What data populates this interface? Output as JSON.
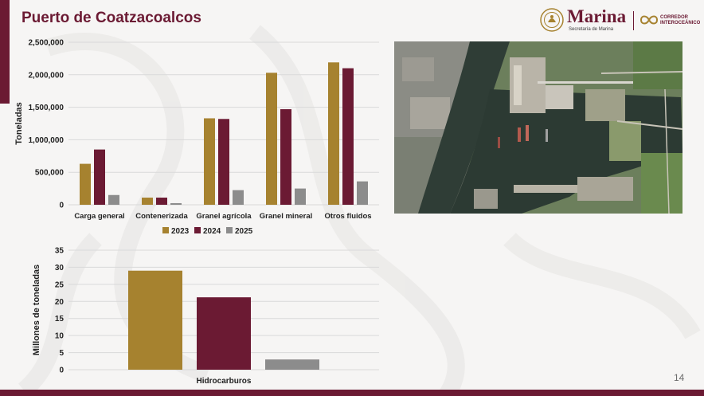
{
  "slide": {
    "title": "Puerto de Coatzacoalcos",
    "page_number": "14",
    "colors": {
      "title": "#6b1a33",
      "band": "#6b1a33",
      "gold": "#a6822f",
      "maroon": "#6b1a33",
      "gray": "#8c8c8c"
    }
  },
  "logo": {
    "brand": "Marina",
    "subtitle": "Secretaría de Marina",
    "partner_line1": "CORREDOR",
    "partner_line2": "INTEROCEÁNICO",
    "icons": [
      "coat-of-arms-icon",
      "infinity-logo-icon"
    ]
  },
  "photo": {
    "icon": "satellite-port-image"
  },
  "chart_data": [
    {
      "type": "bar",
      "ylabel": "Toneladas",
      "xlabel": "",
      "ylim": [
        0,
        2500000
      ],
      "yticks": [
        0,
        500000,
        1000000,
        1500000,
        2000000,
        2500000
      ],
      "ytick_labels": [
        "0",
        "500,000",
        "1,000,000",
        "1,500,000",
        "2,000,000",
        "2,500,000"
      ],
      "grid": true,
      "legend": "bottom",
      "categories": [
        "Carga general",
        "Contenerizada",
        "Granel agrícola",
        "Granel mineral",
        "Otros fluidos"
      ],
      "series": [
        {
          "name": "2023",
          "color": "#a6822f",
          "values": [
            630000,
            110000,
            1330000,
            2030000,
            2190000
          ]
        },
        {
          "name": "2024",
          "color": "#6b1a33",
          "values": [
            850000,
            110000,
            1320000,
            1470000,
            2100000
          ]
        },
        {
          "name": "2025",
          "color": "#8c8c8c",
          "values": [
            150000,
            25000,
            225000,
            250000,
            360000
          ]
        }
      ]
    },
    {
      "type": "bar",
      "ylabel": "Millones de toneladas",
      "xlabel": "",
      "ylim": [
        0,
        35
      ],
      "yticks": [
        0,
        5,
        10,
        15,
        20,
        25,
        30,
        35
      ],
      "ytick_labels": [
        "0",
        "5",
        "10",
        "15",
        "20",
        "25",
        "30",
        "35"
      ],
      "grid": true,
      "legend": "none",
      "categories": [
        "Hidrocarburos"
      ],
      "series": [
        {
          "name": "2023",
          "color": "#a6822f",
          "values": [
            29
          ]
        },
        {
          "name": "2024",
          "color": "#6b1a33",
          "values": [
            21.2
          ]
        },
        {
          "name": "2025",
          "color": "#8c8c8c",
          "values": [
            3
          ]
        }
      ]
    }
  ]
}
